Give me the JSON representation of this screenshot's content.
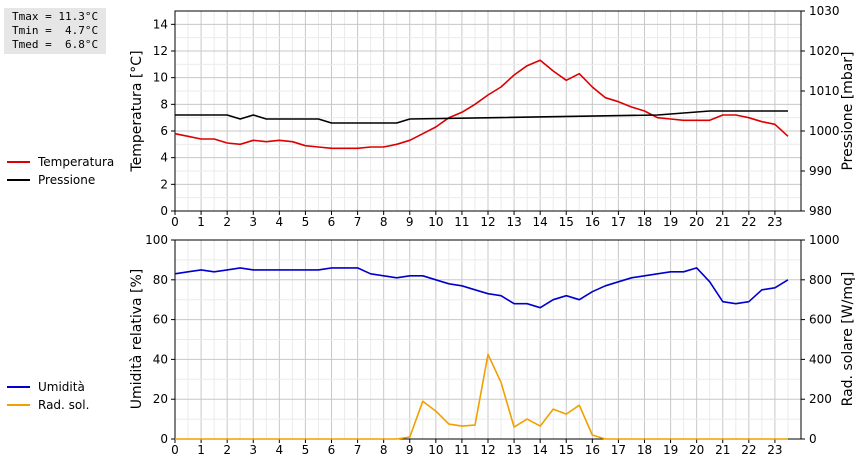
{
  "stats": {
    "tmax": "Tmax = 11.3°C",
    "tmin": "Tmin =  4.7°C",
    "tmed": "Tmed =  6.8°C"
  },
  "chart_data": [
    {
      "type": "line",
      "xlabel": "",
      "ylabel": "Temperatura [°C]",
      "y2label": "Pressione [mbar]",
      "xlim": [
        0,
        24
      ],
      "ylim": [
        0,
        15
      ],
      "y2lim": [
        980,
        1030
      ],
      "xticks": [
        0,
        1,
        2,
        3,
        4,
        5,
        6,
        7,
        8,
        9,
        10,
        11,
        12,
        13,
        14,
        15,
        16,
        17,
        18,
        19,
        20,
        21,
        22,
        23
      ],
      "yticks": [
        0,
        2,
        4,
        6,
        8,
        10,
        12,
        14
      ],
      "y2ticks": [
        980,
        990,
        1000,
        1010,
        1020,
        1030
      ],
      "grid": true,
      "legend_position": "left",
      "series": [
        {
          "name": "Temperatura",
          "axis": "left",
          "color": "#dd0000",
          "x": [
            0,
            0.5,
            1,
            1.5,
            2,
            2.5,
            3,
            3.5,
            4,
            4.5,
            5,
            5.5,
            6,
            6.5,
            7,
            7.5,
            8,
            8.5,
            9,
            9.5,
            10,
            10.5,
            11,
            11.5,
            12,
            12.5,
            13,
            13.5,
            14,
            14.5,
            15,
            15.5,
            16,
            16.5,
            17,
            17.5,
            18,
            18.5,
            19,
            19.5,
            20,
            20.5,
            21,
            21.5,
            22,
            22.5,
            23,
            23.5
          ],
          "y": [
            5.8,
            5.6,
            5.4,
            5.4,
            5.1,
            5.0,
            5.3,
            5.2,
            5.3,
            5.2,
            4.9,
            4.8,
            4.7,
            4.7,
            4.7,
            4.8,
            4.8,
            5.0,
            5.3,
            5.8,
            6.3,
            7.0,
            7.4,
            8.0,
            8.7,
            9.3,
            10.2,
            10.9,
            11.3,
            10.5,
            9.8,
            10.3,
            9.3,
            8.5,
            8.2,
            7.8,
            7.5,
            7.0,
            6.9,
            6.8,
            6.8,
            6.8,
            7.2,
            7.2,
            7.0,
            6.7,
            6.5,
            5.6
          ]
        },
        {
          "name": "Pressione",
          "axis": "right",
          "color": "#000000",
          "x": [
            0,
            2,
            2.5,
            3,
            3.5,
            5.5,
            6,
            8.5,
            9,
            18.5,
            20.5,
            23.5
          ],
          "y": [
            1004,
            1004,
            1003,
            1004,
            1003,
            1003,
            1002,
            1002,
            1003,
            1004,
            1005,
            1005
          ]
        }
      ]
    },
    {
      "type": "line",
      "xlabel": "",
      "ylabel": "Umidità relativa [%]",
      "y2label": "Rad. solare [W/mq]",
      "xlim": [
        0,
        24
      ],
      "ylim": [
        0,
        100
      ],
      "y2lim": [
        0,
        1000
      ],
      "xticks": [
        0,
        1,
        2,
        3,
        4,
        5,
        6,
        7,
        8,
        9,
        10,
        11,
        12,
        13,
        14,
        15,
        16,
        17,
        18,
        19,
        20,
        21,
        22,
        23
      ],
      "yticks": [
        0,
        20,
        40,
        60,
        80,
        100
      ],
      "y2ticks": [
        0,
        200,
        400,
        600,
        800,
        1000
      ],
      "grid": true,
      "legend_position": "left",
      "series": [
        {
          "name": "Umidità",
          "axis": "left",
          "color": "#0000cc",
          "x": [
            0,
            0.5,
            1,
            1.5,
            2,
            2.5,
            3,
            3.5,
            4,
            4.5,
            5,
            5.5,
            6,
            6.5,
            7,
            7.5,
            8,
            8.5,
            9,
            9.5,
            10,
            10.5,
            11,
            11.5,
            12,
            12.5,
            13,
            13.5,
            14,
            14.5,
            15,
            15.5,
            16,
            16.5,
            17,
            17.5,
            18,
            18.5,
            19,
            19.5,
            20,
            20.5,
            21,
            21.5,
            22,
            22.5,
            23,
            23.5
          ],
          "y": [
            83,
            84,
            85,
            84,
            85,
            86,
            85,
            85,
            85,
            85,
            85,
            85,
            86,
            86,
            86,
            83,
            82,
            81,
            82,
            82,
            80,
            78,
            77,
            75,
            73,
            72,
            68,
            68,
            66,
            70,
            72,
            70,
            74,
            77,
            79,
            81,
            82,
            83,
            84,
            84,
            86,
            79,
            69,
            68,
            69,
            75,
            76,
            80
          ]
        },
        {
          "name": "Rad. sol.",
          "axis": "right",
          "color": "#f0a000",
          "x": [
            0,
            1,
            2,
            3,
            4,
            5,
            6,
            7,
            8,
            8.5,
            9,
            9.5,
            10,
            10.5,
            11,
            11.5,
            12,
            12.5,
            13,
            13.5,
            14,
            14.5,
            15,
            15.5,
            16,
            16.5,
            17,
            18,
            19,
            20,
            21,
            22,
            23,
            23.5
          ],
          "y": [
            0,
            0,
            0,
            0,
            0,
            0,
            0,
            0,
            0,
            0,
            10,
            190,
            140,
            75,
            65,
            70,
            425,
            285,
            60,
            100,
            65,
            150,
            125,
            170,
            20,
            0,
            0,
            0,
            0,
            0,
            0,
            0,
            0,
            0
          ]
        }
      ]
    }
  ]
}
